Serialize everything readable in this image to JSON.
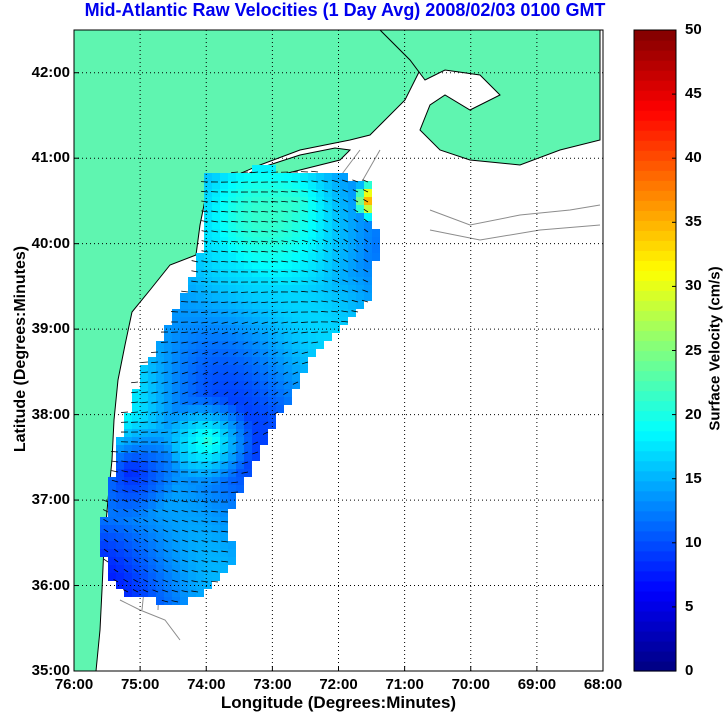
{
  "title": "Mid-Atlantic Raw Velocities (1 Day Avg) 2008/02/03 0100 GMT",
  "x_axis": {
    "label": "Longitude (Degrees:Minutes)",
    "ticks": [
      "76:00",
      "75:00",
      "74:00",
      "73:00",
      "72:00",
      "71:00",
      "70:00",
      "69:00",
      "68:00"
    ]
  },
  "y_axis": {
    "label": "Latitude (Degrees:Minutes)",
    "ticks": [
      "35:00",
      "36:00",
      "37:00",
      "38:00",
      "39:00",
      "40:00",
      "41:00",
      "42:00"
    ]
  },
  "colorbar": {
    "label": "Surface Velocity (cm/s)",
    "ticks": [
      "0",
      "5",
      "10",
      "15",
      "20",
      "25",
      "30",
      "35",
      "40",
      "45",
      "50"
    ],
    "range": [
      0,
      50
    ]
  },
  "map": {
    "lon_range": [
      -76,
      -68
    ],
    "lat_range": [
      35,
      42.5
    ],
    "grid": true,
    "land_color": "#5ff5b0",
    "coast_color": "#000000",
    "contour_color": "#8c8c8c"
  }
}
